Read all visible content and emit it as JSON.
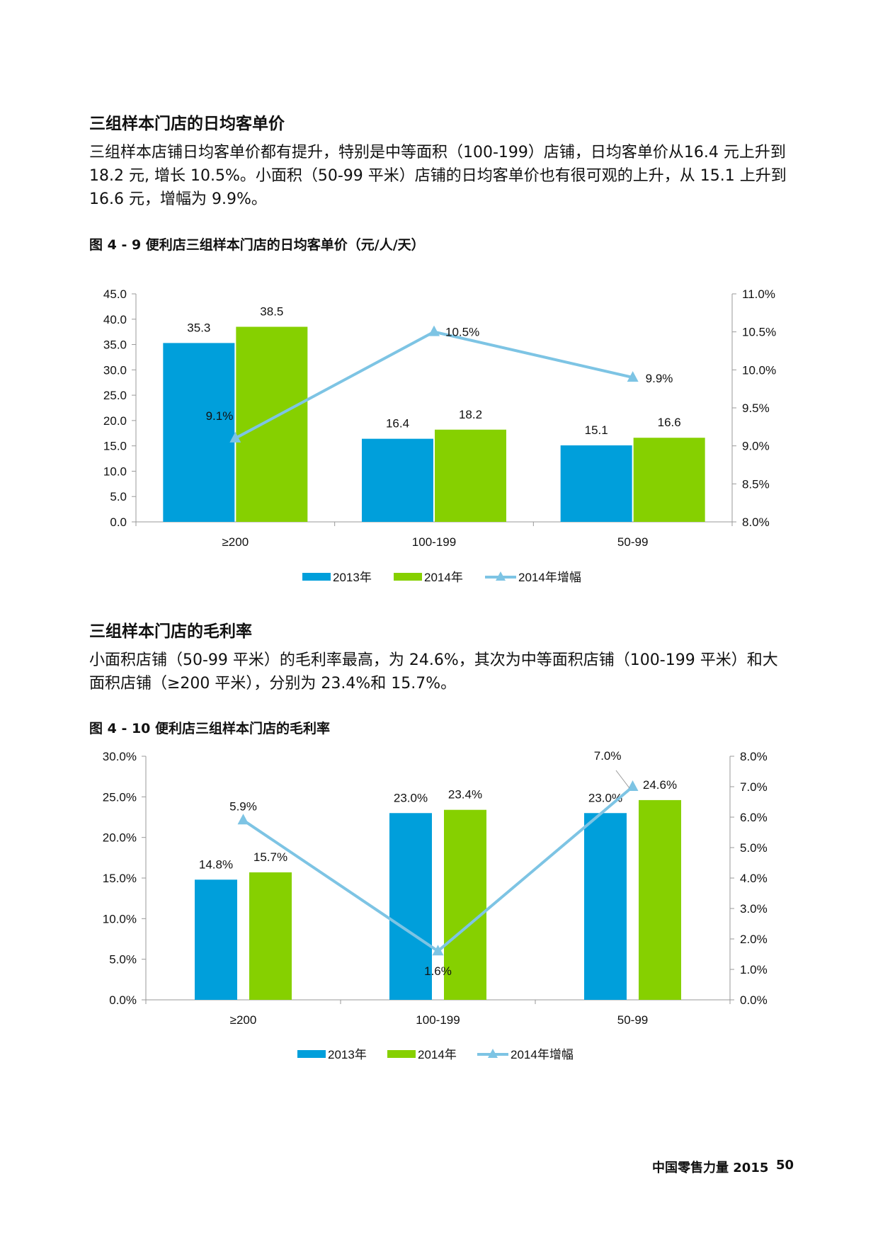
{
  "section1": {
    "heading": "三组样本门店的日均客单价",
    "paragraph": "三组样本店铺日均客单价都有提升，特别是中等面积（100-199）店铺，日均客单价从16.4 元上升到 18.2 元, 增长 10.5%。小面积（50-99 平米）店铺的日均客单价也有很可观的上升，从 15.1 上升到 16.6 元，增幅为 9.9%。",
    "figure_title": "图 4 - 9 便利店三组样本门店的日均客单价（元/人/天）"
  },
  "section2": {
    "heading": "三组样本门店的毛利率",
    "paragraph": "小面积店铺（50-99 平米）的毛利率最高，为 24.6%，其次为中等面积店铺（100-199 平米）和大面积店铺（≥200 平米），分别为 23.4%和 15.7%。",
    "figure_title": "图 4 - 10 便利店三组样本门店的毛利率"
  },
  "footer": {
    "publication": "中国零售力量 2015",
    "page_number": "50"
  },
  "colors": {
    "bar_2013": "#009FDB",
    "bar_2014": "#86D000",
    "line": "#7DC4E4",
    "axis": "#999999"
  },
  "chart_data": [
    {
      "id": "fig4-9",
      "type": "bar",
      "categories": [
        "≥200",
        "100-199",
        "50-99"
      ],
      "series": [
        {
          "name": "2013年",
          "values": [
            35.3,
            16.4,
            15.1
          ],
          "labels": [
            "35.3",
            "16.4",
            "15.1"
          ]
        },
        {
          "name": "2014年",
          "values": [
            38.5,
            18.2,
            16.6
          ],
          "labels": [
            "38.5",
            "18.2",
            "16.6"
          ]
        },
        {
          "name": "2014年增幅",
          "type": "line",
          "axis": "right",
          "values": [
            9.1,
            10.5,
            9.9
          ],
          "labels": [
            "9.1%",
            "10.5%",
            "9.9%"
          ]
        }
      ],
      "y_left": {
        "min": 0,
        "max": 45,
        "ticks": [
          "0.0",
          "5.0",
          "10.0",
          "15.0",
          "20.0",
          "25.0",
          "30.0",
          "35.0",
          "40.0",
          "45.0"
        ]
      },
      "y_right": {
        "min": 8,
        "max": 11,
        "ticks": [
          "8.0%",
          "8.5%",
          "9.0%",
          "9.5%",
          "10.0%",
          "10.5%",
          "11.0%"
        ]
      },
      "legend": [
        "2013年",
        "2014年",
        "2014年增幅"
      ]
    },
    {
      "id": "fig4-10",
      "type": "bar",
      "categories": [
        "≥200",
        "100-199",
        "50-99"
      ],
      "series": [
        {
          "name": "2013年",
          "values": [
            14.8,
            23.0,
            23.0
          ],
          "labels": [
            "14.8%",
            "23.0%",
            "23.0%"
          ]
        },
        {
          "name": "2014年",
          "values": [
            15.7,
            23.4,
            24.6
          ],
          "labels": [
            "15.7%",
            "23.4%",
            "24.6%"
          ]
        },
        {
          "name": "2014年增幅",
          "type": "line",
          "axis": "right",
          "values": [
            5.9,
            1.6,
            7.0
          ],
          "labels": [
            "5.9%",
            "1.6%",
            "7.0%"
          ]
        }
      ],
      "y_left": {
        "min": 0,
        "max": 30,
        "ticks": [
          "0.0%",
          "5.0%",
          "10.0%",
          "15.0%",
          "20.0%",
          "25.0%",
          "30.0%"
        ]
      },
      "y_right": {
        "min": 0,
        "max": 8,
        "ticks": [
          "0.0%",
          "1.0%",
          "2.0%",
          "3.0%",
          "4.0%",
          "5.0%",
          "6.0%",
          "7.0%",
          "8.0%"
        ]
      },
      "legend": [
        "2013年",
        "2014年",
        "2014年增幅"
      ]
    }
  ]
}
